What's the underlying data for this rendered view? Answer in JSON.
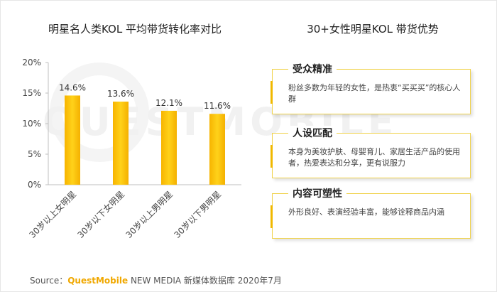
{
  "left_title": "明星名人类KOL 平均带货转化率对比",
  "right_title": "30+女性明星KOL 带货优势",
  "chart_data": {
    "type": "bar",
    "title": "明星名人类KOL 平均带货转化率对比",
    "categories": [
      "30岁以上女明星",
      "30岁以下女明星",
      "30岁以上男明星",
      "30岁以下男明星"
    ],
    "values": [
      14.6,
      13.6,
      12.1,
      11.6
    ],
    "value_labels": [
      "14.6%",
      "13.6%",
      "12.1%",
      "11.6%"
    ],
    "ylim": [
      0,
      20
    ],
    "yticks": [
      "0%",
      "5%",
      "10%",
      "15%",
      "20%"
    ],
    "grid": false,
    "bar_color": "#f6c200"
  },
  "cards": [
    {
      "title": "受众精准",
      "text": "粉丝多数为年轻的女性，是热衷“买买买”的核心人群"
    },
    {
      "title": "人设匹配",
      "text": "本身为美妆护肤、母婴育儿、家居生活产品的使用者，热爱表达和分享，更有说服力"
    },
    {
      "title": "内容可塑性",
      "text": "外形良好、表演经验丰富，能够诠释商品内涵"
    }
  ],
  "source": {
    "prefix": "Source：",
    "brand": "QuestMobile",
    "rest": " NEW MEDIA 新媒体数据库 2020年7月"
  },
  "watermark": "QUESTMOBILE"
}
